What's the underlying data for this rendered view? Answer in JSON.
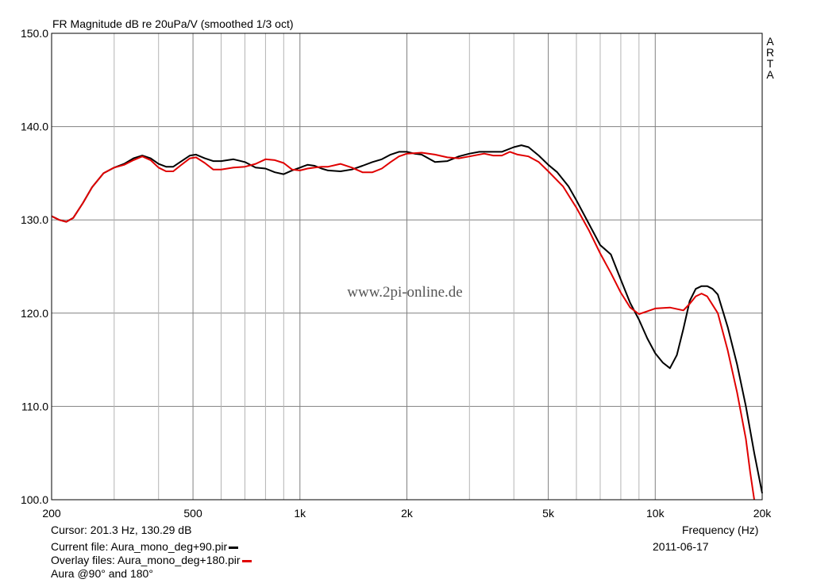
{
  "chart_data": {
    "type": "line",
    "title": "FR Magnitude dB re 20uPa/V (smoothed 1/3 oct)",
    "xlabel": "Frequency (Hz)",
    "x_scale": "log",
    "xlim": [
      200,
      20000
    ],
    "ylim": [
      100,
      150
    ],
    "x_tick_labels": [
      {
        "value": 200,
        "label": "200"
      },
      {
        "value": 500,
        "label": "500"
      },
      {
        "value": 1000,
        "label": "1k"
      },
      {
        "value": 2000,
        "label": "2k"
      },
      {
        "value": 5000,
        "label": "5k"
      },
      {
        "value": 10000,
        "label": "10k"
      },
      {
        "value": 20000,
        "label": "20k"
      }
    ],
    "y_tick_labels": [
      {
        "value": 100,
        "label": "100.0"
      },
      {
        "value": 110,
        "label": "110.0"
      },
      {
        "value": 120,
        "label": "120.0"
      },
      {
        "value": 130,
        "label": "130.0"
      },
      {
        "value": 140,
        "label": "140.0"
      },
      {
        "value": 150,
        "label": "150.0"
      }
    ],
    "x_grid_minor": [
      300,
      400,
      600,
      700,
      800,
      900,
      3000,
      4000,
      6000,
      7000,
      8000,
      9000
    ],
    "grid": true,
    "watermark": "www.2pi-online.de",
    "side_label": [
      "A",
      "R",
      "T",
      "A"
    ],
    "series": [
      {
        "name": "Aura_mono_deg+90.pir",
        "color": "#000000",
        "points": [
          [
            200,
            130.4
          ],
          [
            210,
            130.0
          ],
          [
            220,
            129.8
          ],
          [
            230,
            130.2
          ],
          [
            245,
            131.8
          ],
          [
            260,
            133.5
          ],
          [
            280,
            135.0
          ],
          [
            300,
            135.6
          ],
          [
            320,
            136.0
          ],
          [
            340,
            136.6
          ],
          [
            360,
            136.9
          ],
          [
            380,
            136.6
          ],
          [
            400,
            136.0
          ],
          [
            420,
            135.7
          ],
          [
            440,
            135.7
          ],
          [
            460,
            136.2
          ],
          [
            490,
            136.9
          ],
          [
            510,
            137.0
          ],
          [
            540,
            136.6
          ],
          [
            570,
            136.3
          ],
          [
            600,
            136.3
          ],
          [
            650,
            136.5
          ],
          [
            700,
            136.2
          ],
          [
            750,
            135.6
          ],
          [
            800,
            135.5
          ],
          [
            850,
            135.1
          ],
          [
            900,
            134.9
          ],
          [
            950,
            135.3
          ],
          [
            1000,
            135.6
          ],
          [
            1050,
            135.9
          ],
          [
            1100,
            135.8
          ],
          [
            1150,
            135.5
          ],
          [
            1200,
            135.3
          ],
          [
            1300,
            135.2
          ],
          [
            1400,
            135.4
          ],
          [
            1500,
            135.8
          ],
          [
            1600,
            136.2
          ],
          [
            1700,
            136.5
          ],
          [
            1800,
            137.0
          ],
          [
            1900,
            137.3
          ],
          [
            2000,
            137.3
          ],
          [
            2100,
            137.1
          ],
          [
            2200,
            137.0
          ],
          [
            2400,
            136.2
          ],
          [
            2600,
            136.3
          ],
          [
            2800,
            136.8
          ],
          [
            3000,
            137.1
          ],
          [
            3200,
            137.3
          ],
          [
            3500,
            137.3
          ],
          [
            3700,
            137.3
          ],
          [
            4000,
            137.8
          ],
          [
            4200,
            138.0
          ],
          [
            4400,
            137.8
          ],
          [
            4700,
            136.9
          ],
          [
            5000,
            135.9
          ],
          [
            5300,
            135.1
          ],
          [
            5700,
            133.6
          ],
          [
            6000,
            132.1
          ],
          [
            6500,
            129.6
          ],
          [
            7000,
            127.3
          ],
          [
            7500,
            126.3
          ],
          [
            8000,
            123.6
          ],
          [
            8500,
            121.1
          ],
          [
            9000,
            119.3
          ],
          [
            9500,
            117.3
          ],
          [
            10000,
            115.7
          ],
          [
            10500,
            114.7
          ],
          [
            11000,
            114.1
          ],
          [
            11500,
            115.5
          ],
          [
            12000,
            118.3
          ],
          [
            12500,
            121.3
          ],
          [
            13000,
            122.6
          ],
          [
            13500,
            122.9
          ],
          [
            14000,
            122.9
          ],
          [
            14500,
            122.6
          ],
          [
            15000,
            122.0
          ],
          [
            16000,
            118.5
          ],
          [
            17000,
            114.5
          ],
          [
            18000,
            110.0
          ],
          [
            19000,
            105.0
          ],
          [
            20000,
            100.7
          ]
        ]
      },
      {
        "name": "Aura_mono_deg+180.pir",
        "color": "#e00000",
        "points": [
          [
            200,
            130.4
          ],
          [
            210,
            130.0
          ],
          [
            220,
            129.8
          ],
          [
            230,
            130.2
          ],
          [
            245,
            131.8
          ],
          [
            260,
            133.5
          ],
          [
            280,
            135.0
          ],
          [
            300,
            135.6
          ],
          [
            320,
            135.9
          ],
          [
            340,
            136.4
          ],
          [
            360,
            136.8
          ],
          [
            380,
            136.4
          ],
          [
            400,
            135.6
          ],
          [
            420,
            135.2
          ],
          [
            440,
            135.2
          ],
          [
            460,
            135.8
          ],
          [
            490,
            136.6
          ],
          [
            510,
            136.7
          ],
          [
            540,
            136.1
          ],
          [
            570,
            135.4
          ],
          [
            600,
            135.4
          ],
          [
            650,
            135.6
          ],
          [
            700,
            135.7
          ],
          [
            750,
            136.0
          ],
          [
            800,
            136.5
          ],
          [
            850,
            136.4
          ],
          [
            900,
            136.1
          ],
          [
            950,
            135.4
          ],
          [
            1000,
            135.3
          ],
          [
            1050,
            135.5
          ],
          [
            1100,
            135.6
          ],
          [
            1150,
            135.7
          ],
          [
            1200,
            135.7
          ],
          [
            1300,
            136.0
          ],
          [
            1400,
            135.6
          ],
          [
            1500,
            135.1
          ],
          [
            1600,
            135.1
          ],
          [
            1700,
            135.5
          ],
          [
            1800,
            136.2
          ],
          [
            1900,
            136.8
          ],
          [
            2000,
            137.1
          ],
          [
            2200,
            137.2
          ],
          [
            2400,
            137.0
          ],
          [
            2600,
            136.7
          ],
          [
            2800,
            136.6
          ],
          [
            3000,
            136.8
          ],
          [
            3300,
            137.1
          ],
          [
            3500,
            136.9
          ],
          [
            3700,
            136.9
          ],
          [
            3900,
            137.3
          ],
          [
            4100,
            137.0
          ],
          [
            4400,
            136.8
          ],
          [
            4700,
            136.2
          ],
          [
            5000,
            135.2
          ],
          [
            5500,
            133.6
          ],
          [
            6000,
            131.3
          ],
          [
            6500,
            128.9
          ],
          [
            7000,
            126.4
          ],
          [
            7500,
            124.3
          ],
          [
            8000,
            122.2
          ],
          [
            8500,
            120.6
          ],
          [
            9000,
            119.9
          ],
          [
            9500,
            120.2
          ],
          [
            10000,
            120.5
          ],
          [
            11000,
            120.6
          ],
          [
            12000,
            120.3
          ],
          [
            12500,
            121.0
          ],
          [
            13000,
            121.8
          ],
          [
            13500,
            122.1
          ],
          [
            14000,
            121.8
          ],
          [
            15000,
            120.0
          ],
          [
            16000,
            116.0
          ],
          [
            17000,
            111.5
          ],
          [
            18000,
            106.5
          ],
          [
            18500,
            103.0
          ],
          [
            19000,
            100.0
          ]
        ]
      }
    ]
  },
  "footer": {
    "cursor": "Cursor: 201.3 Hz, 130.29 dB",
    "current_file": "Current file: Aura_mono_deg+90.pir",
    "overlay_files": "Overlay files: Aura_mono_deg+180.pir",
    "description": "Aura @90° and 180°",
    "date": "2011-06-17",
    "current_color": "#000000",
    "overlay_color": "#e00000"
  }
}
